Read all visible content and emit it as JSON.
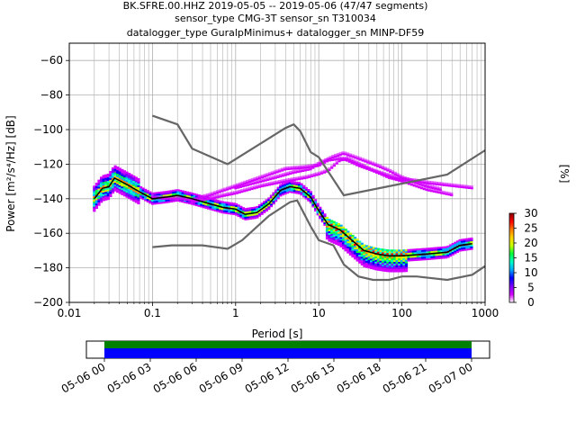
{
  "title_lines": [
    "BK.SFRE.00.HHZ   2019-05-05 -- 2019-05-06  (47/47 segments)",
    "sensor_type CMG-3T sensor_sn T310034",
    "datalogger_type GuralpMinimus+ datalogger_sn MINP-DF59"
  ],
  "chart_data": {
    "type": "heatmap",
    "xlabel": "Period [s]",
    "ylabel": "Power [m²/s⁴/Hz] [dB]",
    "x_scale": "log",
    "xlim": [
      0.01,
      1000
    ],
    "ylim": [
      -200,
      -50
    ],
    "x_tick_labels": [
      {
        "v": 0.01,
        "t": "0.01"
      },
      {
        "v": 0.1,
        "t": "0.1"
      },
      {
        "v": 1,
        "t": "1"
      },
      {
        "v": 10,
        "t": "10"
      },
      {
        "v": 100,
        "t": "100"
      },
      {
        "v": 1000,
        "t": "1000"
      }
    ],
    "y_ticks": [
      -60,
      -80,
      -100,
      -120,
      -140,
      -160,
      -180,
      -200
    ],
    "grid": true,
    "colorbar": {
      "label": "[%]",
      "range": [
        0,
        30
      ],
      "ticks": [
        0,
        5,
        10,
        15,
        20,
        25,
        30
      ],
      "colors": [
        "#ffffff",
        "#d400ff",
        "#7a00ff",
        "#0000ff",
        "#00aaff",
        "#00ffc8",
        "#00ff3c",
        "#c8ff00",
        "#ffd400",
        "#ff7a00",
        "#ff0000",
        "#8b0000"
      ]
    },
    "noise_models": {
      "high": {
        "period": [
          0.1,
          0.2,
          0.3,
          0.8,
          4,
          5,
          6,
          8,
          10,
          20,
          350,
          1000
        ],
        "power": [
          -92,
          -97,
          -111,
          -120,
          -99,
          -97,
          -101,
          -113,
          -116,
          -138,
          -126,
          -112
        ]
      },
      "low": {
        "period": [
          0.1,
          0.17,
          0.4,
          0.8,
          1.2,
          2.5,
          4.5,
          5.5,
          8,
          10,
          15,
          20,
          30,
          45,
          70,
          100,
          150,
          350,
          700,
          1000
        ],
        "power": [
          -168,
          -167,
          -167,
          -169,
          -164,
          -150,
          -142,
          -141,
          -156,
          -164,
          -167,
          -178,
          -185,
          -187,
          -187,
          -185,
          -185,
          -187,
          -184,
          -179
        ]
      }
    },
    "mode_curve": {
      "period": [
        0.02,
        0.025,
        0.03,
        0.035,
        0.05,
        0.07,
        0.1,
        0.15,
        0.2,
        0.3,
        0.5,
        0.7,
        1,
        1.3,
        1.8,
        2.5,
        3.5,
        4.5,
        6,
        8,
        10,
        13,
        18,
        25,
        35,
        50,
        70,
        100,
        200,
        350,
        500,
        700
      ],
      "power": [
        -140,
        -134,
        -133,
        -128,
        -132,
        -136,
        -140,
        -139,
        -138,
        -140,
        -143,
        -145,
        -146,
        -149,
        -148,
        -143,
        -135,
        -133,
        -134,
        -139,
        -147,
        -155,
        -158,
        -164,
        -170,
        -172,
        -173,
        -173,
        -172,
        -171,
        -167,
        -166
      ]
    },
    "spread_curves": [
      {
        "period": [
          0.1,
          0.13,
          0.2,
          0.3,
          0.5,
          1,
          2,
          4,
          7,
          10,
          13,
          18,
          22,
          30,
          45,
          70,
          100,
          150,
          200,
          300,
          700
        ],
        "power": [
          -139,
          -140,
          -140,
          -141,
          -138,
          -133,
          -128,
          -123,
          -122,
          -121,
          -118,
          -117,
          -118,
          -121,
          -124,
          -127,
          -129,
          -130,
          -131,
          -132,
          -134
        ]
      },
      {
        "period": [
          0.3,
          0.5,
          1,
          2,
          4,
          7,
          10,
          13,
          18,
          22,
          30,
          45,
          70,
          100,
          200,
          400
        ],
        "power": [
          -142,
          -140,
          -137,
          -133,
          -130,
          -128,
          -126,
          -124,
          -118,
          -117,
          -120,
          -124,
          -128,
          -130,
          -135,
          -138
        ]
      },
      {
        "period": [
          1,
          3,
          5,
          8,
          10,
          15,
          20,
          30,
          50,
          70,
          100,
          200,
          300
        ],
        "power": [
          -134,
          -128,
          -125,
          -123,
          -120,
          -116,
          -114,
          -117,
          -121,
          -124,
          -128,
          -133,
          -135
        ]
      }
    ]
  },
  "timeline": {
    "tick_labels": [
      "05-06 00",
      "05-06 03",
      "05-06 06",
      "05-06 09",
      "05-06 12",
      "05-06 15",
      "05-06 18",
      "05-06 21",
      "05-07 00"
    ],
    "bar_colors": {
      "top": "#008000",
      "bottom": "#0000ff"
    }
  }
}
